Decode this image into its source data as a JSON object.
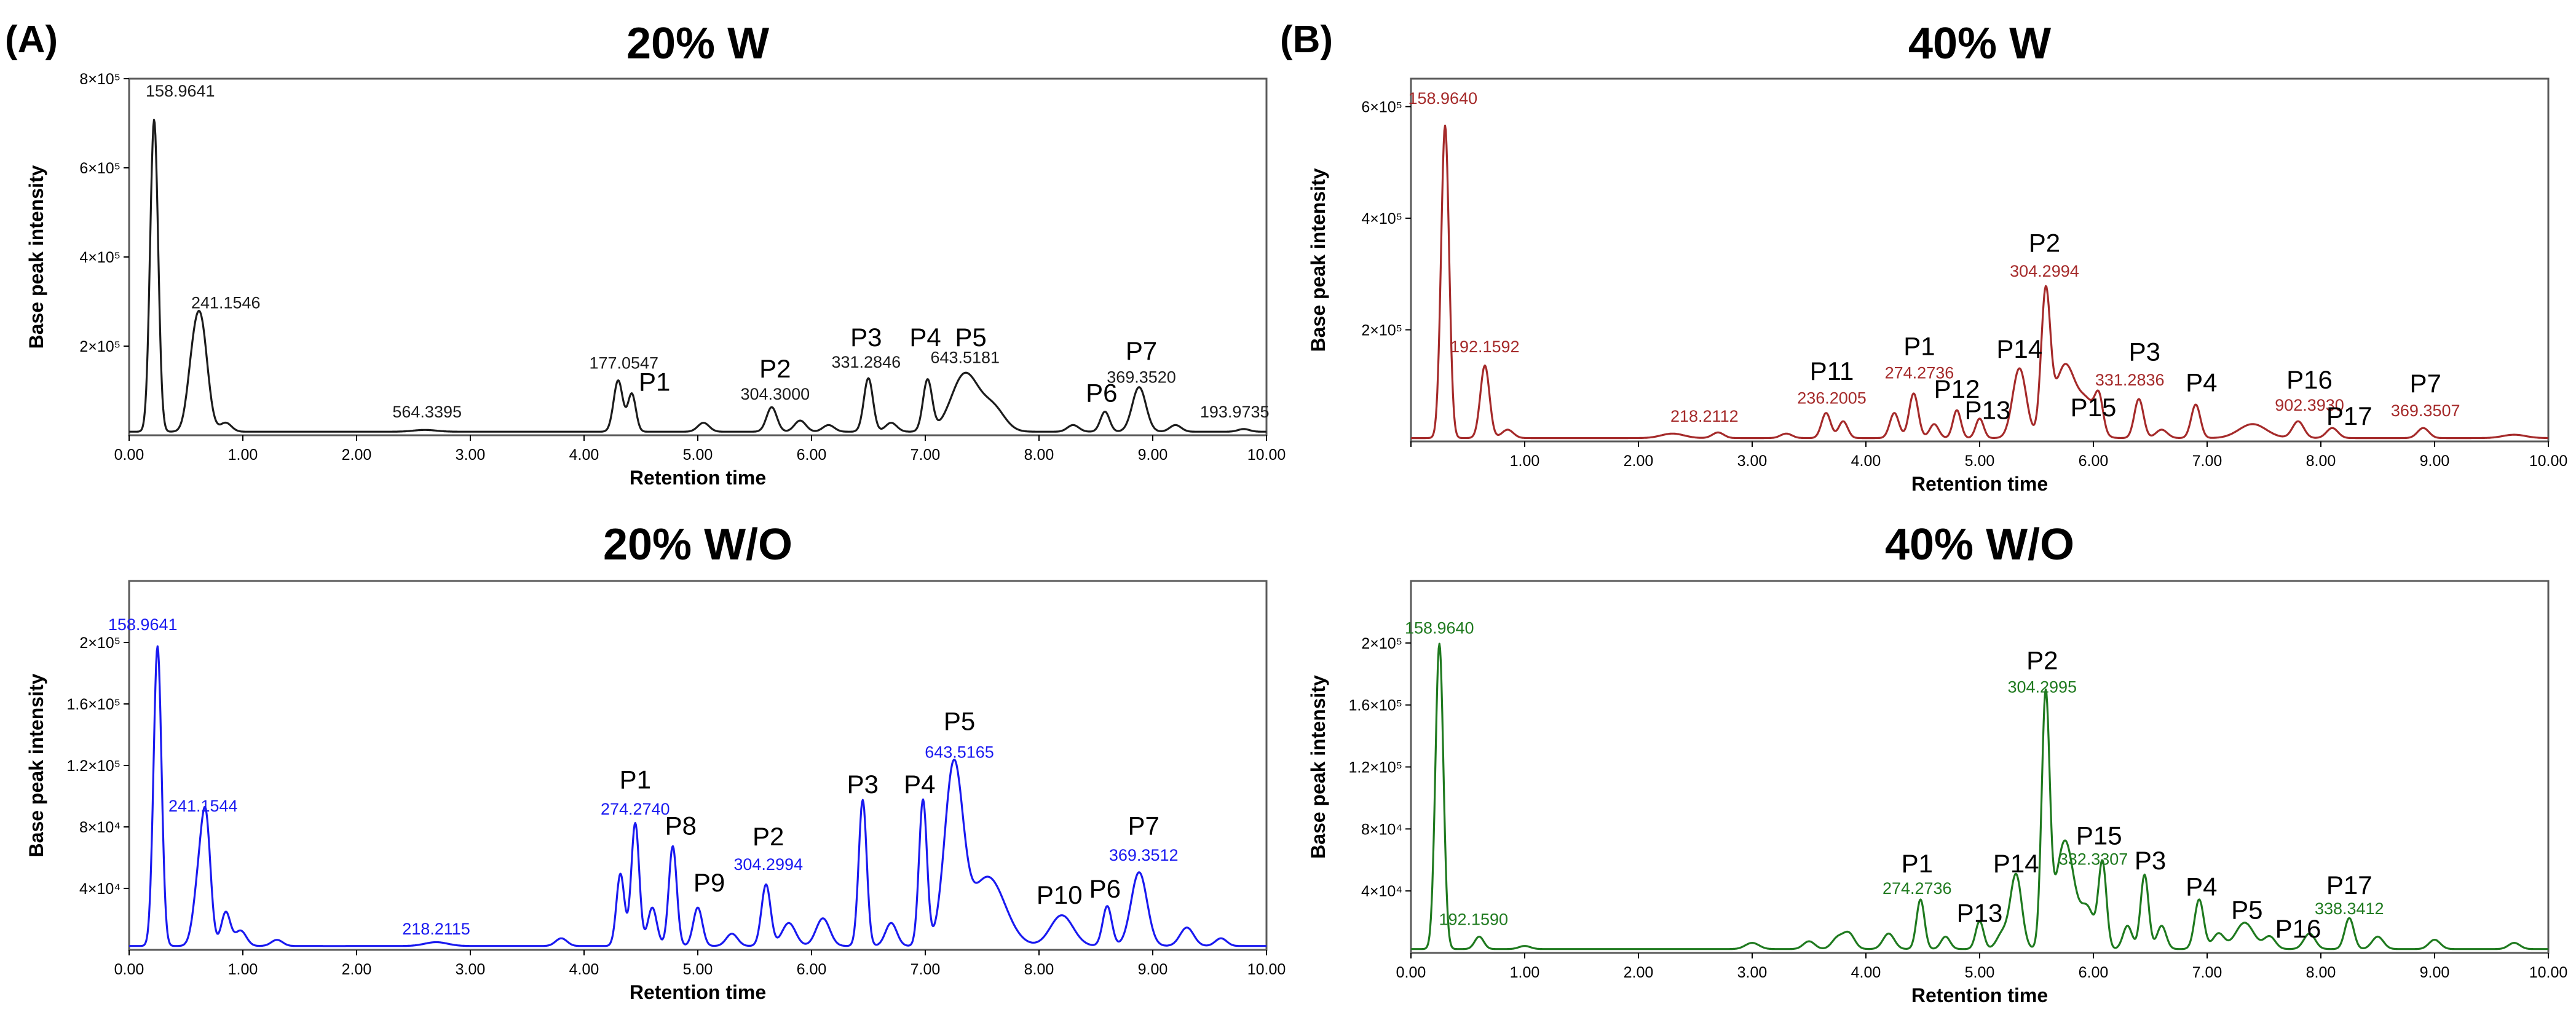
{
  "figure": {
    "panel_a_label": "(A)",
    "panel_b_label": "(B)"
  },
  "chart_data": [
    {
      "type": "line",
      "id": "a1",
      "title": "20% W",
      "xlabel": "Retention time",
      "ylabel": "Base peak intensity",
      "color": "#1c1c1c",
      "xlim": [
        0,
        10
      ],
      "ylim": [
        0,
        800000
      ],
      "xticks": [
        "0.00",
        "1.00",
        "2.00",
        "3.00",
        "4.00",
        "5.00",
        "6.00",
        "7.00",
        "8.00",
        "9.00",
        "10.00"
      ],
      "yticks": [
        {
          "v": 200000,
          "label": "2×10⁵"
        },
        {
          "v": 400000,
          "label": "4×10⁵"
        },
        {
          "v": 600000,
          "label": "6×10⁵"
        },
        {
          "v": 800000,
          "label": "8×10⁵"
        }
      ],
      "baseline": 8000,
      "peaks": [
        [
          0.22,
          700000,
          0.035
        ],
        [
          0.63,
          240000,
          0.06
        ],
        [
          0.55,
          90000,
          0.05
        ],
        [
          0.85,
          20000,
          0.05
        ],
        [
          2.6,
          4000,
          0.1
        ],
        [
          4.3,
          115000,
          0.04
        ],
        [
          4.42,
          85000,
          0.035
        ],
        [
          5.05,
          20000,
          0.05
        ],
        [
          5.65,
          55000,
          0.045
        ],
        [
          5.9,
          25000,
          0.05
        ],
        [
          6.15,
          15000,
          0.05
        ],
        [
          6.5,
          120000,
          0.04
        ],
        [
          6.7,
          20000,
          0.05
        ],
        [
          7.02,
          115000,
          0.04
        ],
        [
          7.35,
          130000,
          0.12
        ],
        [
          7.6,
          50000,
          0.1
        ],
        [
          8.3,
          15000,
          0.05
        ],
        [
          8.58,
          45000,
          0.04
        ],
        [
          8.88,
          100000,
          0.06
        ],
        [
          9.2,
          15000,
          0.05
        ],
        [
          9.8,
          6000,
          0.05
        ]
      ],
      "labels": [
        {
          "text": "158.9641",
          "x": 0.45,
          "y": 760000,
          "kind": "mass"
        },
        {
          "text": "241.1546",
          "x": 0.85,
          "y": 285000,
          "kind": "mass"
        },
        {
          "text": "564.3395",
          "x": 2.62,
          "y": 40000,
          "kind": "mass"
        },
        {
          "text": "177.0547",
          "x": 4.35,
          "y": 150000,
          "kind": "mass"
        },
        {
          "text": "P1",
          "x": 4.62,
          "y": 100000,
          "kind": "name"
        },
        {
          "text": "P2",
          "x": 5.68,
          "y": 130000,
          "kind": "name"
        },
        {
          "text": "304.3000",
          "x": 5.68,
          "y": 80000,
          "kind": "mass"
        },
        {
          "text": "P3",
          "x": 6.48,
          "y": 200000,
          "kind": "name"
        },
        {
          "text": "331.2846",
          "x": 6.48,
          "y": 152000,
          "kind": "mass"
        },
        {
          "text": "P4",
          "x": 7.0,
          "y": 200000,
          "kind": "name"
        },
        {
          "text": "P5",
          "x": 7.4,
          "y": 200000,
          "kind": "name"
        },
        {
          "text": "643.5181",
          "x": 7.35,
          "y": 162000,
          "kind": "mass"
        },
        {
          "text": "P6",
          "x": 8.55,
          "y": 75000,
          "kind": "name"
        },
        {
          "text": "P7",
          "x": 8.9,
          "y": 170000,
          "kind": "name"
        },
        {
          "text": "369.3520",
          "x": 8.9,
          "y": 118000,
          "kind": "mass"
        },
        {
          "text": "193.9735",
          "x": 9.72,
          "y": 40000,
          "kind": "mass"
        }
      ]
    },
    {
      "type": "line",
      "id": "a2",
      "title": "20% W/O",
      "xlabel": "Retention time",
      "ylabel": "Base peak intensity",
      "color": "#1a1af0",
      "xlim": [
        0,
        10
      ],
      "ylim": [
        0,
        240000
      ],
      "xticks": [
        "0.00",
        "1.00",
        "2.00",
        "3.00",
        "4.00",
        "5.00",
        "6.00",
        "7.00",
        "8.00",
        "9.00",
        "10.00"
      ],
      "yticks": [
        {
          "v": 40000,
          "label": "4×10⁴"
        },
        {
          "v": 80000,
          "label": "8×10⁴"
        },
        {
          "v": 120000,
          "label": "1.2×10⁵"
        },
        {
          "v": 160000,
          "label": "1.6×10⁵"
        },
        {
          "v": 200000,
          "label": "2×10⁵"
        }
      ],
      "baseline": 2500,
      "peaks": [
        [
          0.25,
          195000,
          0.035
        ],
        [
          0.62,
          45000,
          0.05
        ],
        [
          0.68,
          65000,
          0.04
        ],
        [
          0.85,
          22000,
          0.04
        ],
        [
          0.98,
          10000,
          0.05
        ],
        [
          1.3,
          4000,
          0.05
        ],
        [
          2.7,
          2500,
          0.1
        ],
        [
          3.8,
          5000,
          0.05
        ],
        [
          4.32,
          47000,
          0.035
        ],
        [
          4.45,
          80000,
          0.035
        ],
        [
          4.6,
          25000,
          0.04
        ],
        [
          4.78,
          65000,
          0.035
        ],
        [
          5.0,
          25000,
          0.04
        ],
        [
          5.3,
          8000,
          0.05
        ],
        [
          5.6,
          40000,
          0.04
        ],
        [
          5.8,
          15000,
          0.06
        ],
        [
          6.1,
          18000,
          0.06
        ],
        [
          6.45,
          95000,
          0.035
        ],
        [
          6.7,
          15000,
          0.05
        ],
        [
          6.98,
          95000,
          0.035
        ],
        [
          7.25,
          115000,
          0.08
        ],
        [
          7.55,
          45000,
          0.15
        ],
        [
          8.2,
          20000,
          0.1
        ],
        [
          8.6,
          26000,
          0.04
        ],
        [
          8.88,
          48000,
          0.07
        ],
        [
          9.3,
          12000,
          0.06
        ],
        [
          9.6,
          5000,
          0.05
        ]
      ],
      "labels": [
        {
          "text": "158.9641",
          "x": 0.12,
          "y": 208000,
          "kind": "mass"
        },
        {
          "text": "241.1544",
          "x": 0.65,
          "y": 90000,
          "kind": "mass"
        },
        {
          "text": "218.2115",
          "x": 2.7,
          "y": 10000,
          "kind": "mass"
        },
        {
          "text": "P1",
          "x": 4.45,
          "y": 105000,
          "kind": "name"
        },
        {
          "text": "274.2740",
          "x": 4.45,
          "y": 88000,
          "kind": "mass"
        },
        {
          "text": "P8",
          "x": 4.85,
          "y": 75000,
          "kind": "name"
        },
        {
          "text": "P9",
          "x": 5.1,
          "y": 38000,
          "kind": "name"
        },
        {
          "text": "P2",
          "x": 5.62,
          "y": 68000,
          "kind": "name"
        },
        {
          "text": "304.2994",
          "x": 5.62,
          "y": 52000,
          "kind": "mass"
        },
        {
          "text": "P3",
          "x": 6.45,
          "y": 102000,
          "kind": "name"
        },
        {
          "text": "P4",
          "x": 6.95,
          "y": 102000,
          "kind": "name"
        },
        {
          "text": "P5",
          "x": 7.3,
          "y": 143000,
          "kind": "name"
        },
        {
          "text": "643.5165",
          "x": 7.3,
          "y": 125000,
          "kind": "mass"
        },
        {
          "text": "P10",
          "x": 8.18,
          "y": 30000,
          "kind": "name"
        },
        {
          "text": "P6",
          "x": 8.58,
          "y": 34000,
          "kind": "name"
        },
        {
          "text": "P7",
          "x": 8.92,
          "y": 75000,
          "kind": "name"
        },
        {
          "text": "369.3512",
          "x": 8.92,
          "y": 58000,
          "kind": "mass"
        }
      ]
    },
    {
      "type": "line",
      "id": "b1",
      "title": "40% W",
      "xlabel": "Retention time",
      "ylabel": "Base peak intensity",
      "color": "#a52a2a",
      "xlim": [
        0,
        10
      ],
      "ylim": [
        0,
        650000
      ],
      "xticks": [
        "",
        "1.00",
        "2.00",
        "3.00",
        "4.00",
        "5.00",
        "6.00",
        "7.00",
        "8.00",
        "9.00",
        "10.00"
      ],
      "yticks": [
        {
          "v": 200000,
          "label": "2×10⁵"
        },
        {
          "v": 400000,
          "label": "4×10⁵"
        },
        {
          "v": 600000,
          "label": "6×10⁵"
        }
      ],
      "baseline": 6000,
      "peaks": [
        [
          0.3,
          560000,
          0.035
        ],
        [
          0.65,
          130000,
          0.04
        ],
        [
          0.85,
          15000,
          0.05
        ],
        [
          2.3,
          8000,
          0.1
        ],
        [
          2.7,
          10000,
          0.05
        ],
        [
          3.3,
          8000,
          0.05
        ],
        [
          3.65,
          45000,
          0.04
        ],
        [
          3.8,
          30000,
          0.04
        ],
        [
          4.25,
          45000,
          0.04
        ],
        [
          4.42,
          80000,
          0.04
        ],
        [
          4.6,
          25000,
          0.04
        ],
        [
          4.8,
          50000,
          0.035
        ],
        [
          5.0,
          35000,
          0.035
        ],
        [
          5.35,
          125000,
          0.06
        ],
        [
          5.58,
          250000,
          0.04
        ],
        [
          5.75,
          130000,
          0.09
        ],
        [
          5.95,
          60000,
          0.08
        ],
        [
          6.05,
          55000,
          0.035
        ],
        [
          6.4,
          70000,
          0.04
        ],
        [
          6.6,
          15000,
          0.05
        ],
        [
          6.9,
          60000,
          0.04
        ],
        [
          7.4,
          25000,
          0.12
        ],
        [
          7.8,
          30000,
          0.05
        ],
        [
          8.1,
          18000,
          0.05
        ],
        [
          8.9,
          18000,
          0.05
        ],
        [
          9.7,
          6000,
          0.1
        ]
      ],
      "labels": [
        {
          "text": "158.9640",
          "x": 0.28,
          "y": 605000,
          "kind": "mass"
        },
        {
          "text": "192.1592",
          "x": 0.65,
          "y": 160000,
          "kind": "mass"
        },
        {
          "text": "218.2112",
          "x": 2.58,
          "y": 35000,
          "kind": "mass"
        },
        {
          "text": "P11",
          "x": 3.7,
          "y": 110000,
          "kind": "name"
        },
        {
          "text": "236.2005",
          "x": 3.7,
          "y": 68000,
          "kind": "mass"
        },
        {
          "text": "P1",
          "x": 4.47,
          "y": 155000,
          "kind": "name"
        },
        {
          "text": "274.2736",
          "x": 4.47,
          "y": 113000,
          "kind": "mass"
        },
        {
          "text": "P12",
          "x": 4.8,
          "y": 78000,
          "kind": "name"
        },
        {
          "text": "P13",
          "x": 5.07,
          "y": 40000,
          "kind": "name"
        },
        {
          "text": "P14",
          "x": 5.35,
          "y": 150000,
          "kind": "name"
        },
        {
          "text": "P2",
          "x": 5.57,
          "y": 340000,
          "kind": "name"
        },
        {
          "text": "304.2994",
          "x": 5.57,
          "y": 295000,
          "kind": "mass"
        },
        {
          "text": "P15",
          "x": 6.0,
          "y": 45000,
          "kind": "name"
        },
        {
          "text": "P3",
          "x": 6.45,
          "y": 145000,
          "kind": "name"
        },
        {
          "text": "331.2836",
          "x": 6.32,
          "y": 100000,
          "kind": "mass"
        },
        {
          "text": "P4",
          "x": 6.95,
          "y": 90000,
          "kind": "name"
        },
        {
          "text": "P16",
          "x": 7.9,
          "y": 95000,
          "kind": "name"
        },
        {
          "text": "902.3930",
          "x": 7.9,
          "y": 55000,
          "kind": "mass"
        },
        {
          "text": "P17",
          "x": 8.25,
          "y": 30000,
          "kind": "name"
        },
        {
          "text": "P7",
          "x": 8.92,
          "y": 88000,
          "kind": "name"
        },
        {
          "text": "369.3507",
          "x": 8.92,
          "y": 45000,
          "kind": "mass"
        }
      ]
    },
    {
      "type": "line",
      "id": "b2",
      "title": "40% W/O",
      "xlabel": "Retention time",
      "ylabel": "Base peak intensity",
      "color": "#1f7a1f",
      "xlim": [
        0,
        10
      ],
      "ylim": [
        0,
        240000
      ],
      "xticks": [
        "0.00",
        "1.00",
        "2.00",
        "3.00",
        "4.00",
        "5.00",
        "6.00",
        "7.00",
        "8.00",
        "9.00",
        "10.00"
      ],
      "yticks": [
        {
          "v": 40000,
          "label": "4×10⁴"
        },
        {
          "v": 80000,
          "label": "8×10⁴"
        },
        {
          "v": 120000,
          "label": "1.2×10⁵"
        },
        {
          "v": 160000,
          "label": "1.6×10⁵"
        },
        {
          "v": 200000,
          "label": "2×10⁵"
        }
      ],
      "baseline": 2500,
      "peaks": [
        [
          0.25,
          197000,
          0.035
        ],
        [
          0.6,
          8000,
          0.04
        ],
        [
          1.0,
          2000,
          0.05
        ],
        [
          3.0,
          4000,
          0.06
        ],
        [
          3.5,
          5000,
          0.05
        ],
        [
          3.75,
          7000,
          0.05
        ],
        [
          3.85,
          10000,
          0.05
        ],
        [
          4.2,
          10000,
          0.05
        ],
        [
          4.48,
          32000,
          0.035
        ],
        [
          4.7,
          8000,
          0.04
        ],
        [
          5.0,
          18000,
          0.035
        ],
        [
          5.2,
          10000,
          0.05
        ],
        [
          5.32,
          48000,
          0.05
        ],
        [
          5.58,
          160000,
          0.035
        ],
        [
          5.75,
          70000,
          0.08
        ],
        [
          5.95,
          25000,
          0.06
        ],
        [
          6.08,
          55000,
          0.035
        ],
        [
          6.3,
          15000,
          0.04
        ],
        [
          6.45,
          48000,
          0.035
        ],
        [
          6.6,
          15000,
          0.04
        ],
        [
          6.93,
          32000,
          0.04
        ],
        [
          7.1,
          10000,
          0.05
        ],
        [
          7.33,
          17000,
          0.08
        ],
        [
          7.55,
          8000,
          0.05
        ],
        [
          7.9,
          10000,
          0.05
        ],
        [
          8.25,
          20000,
          0.04
        ],
        [
          8.5,
          8000,
          0.05
        ],
        [
          9.0,
          6000,
          0.05
        ],
        [
          9.7,
          4000,
          0.05
        ]
      ],
      "labels": [
        {
          "text": "158.9640",
          "x": 0.25,
          "y": 206000,
          "kind": "mass"
        },
        {
          "text": "192.1590",
          "x": 0.55,
          "y": 18000,
          "kind": "mass"
        },
        {
          "text": "P1",
          "x": 4.45,
          "y": 52000,
          "kind": "name"
        },
        {
          "text": "274.2736",
          "x": 4.45,
          "y": 38000,
          "kind": "mass"
        },
        {
          "text": "P13",
          "x": 5.0,
          "y": 20000,
          "kind": "name"
        },
        {
          "text": "P14",
          "x": 5.32,
          "y": 52000,
          "kind": "name"
        },
        {
          "text": "P2",
          "x": 5.55,
          "y": 183000,
          "kind": "name"
        },
        {
          "text": "304.2995",
          "x": 5.55,
          "y": 168000,
          "kind": "mass"
        },
        {
          "text": "P15",
          "x": 6.05,
          "y": 70000,
          "kind": "name"
        },
        {
          "text": "332.3307",
          "x": 6.0,
          "y": 57000,
          "kind": "mass"
        },
        {
          "text": "P3",
          "x": 6.5,
          "y": 54000,
          "kind": "name"
        },
        {
          "text": "P4",
          "x": 6.95,
          "y": 37000,
          "kind": "name"
        },
        {
          "text": "P5",
          "x": 7.35,
          "y": 22000,
          "kind": "name"
        },
        {
          "text": "P16",
          "x": 7.8,
          "y": 10000,
          "kind": "name"
        },
        {
          "text": "P17",
          "x": 8.25,
          "y": 38000,
          "kind": "name"
        },
        {
          "text": "338.3412",
          "x": 8.25,
          "y": 25000,
          "kind": "mass"
        }
      ]
    }
  ]
}
